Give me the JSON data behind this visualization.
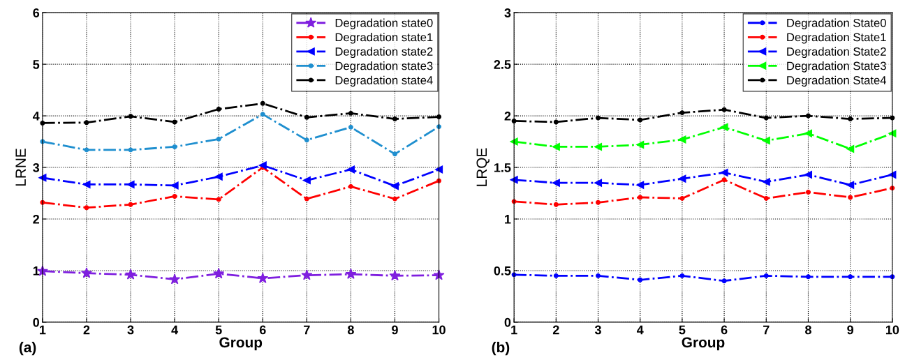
{
  "chart_data": [
    {
      "type": "line",
      "xlabel": "Group",
      "ylabel": "LRNE",
      "annotations": [
        "(a)"
      ],
      "x": [
        1,
        2,
        3,
        4,
        5,
        6,
        7,
        8,
        9,
        10
      ],
      "xlim": [
        1,
        10
      ],
      "xticks": [
        1,
        2,
        3,
        4,
        5,
        6,
        7,
        8,
        9,
        10
      ],
      "ylim": [
        0,
        6
      ],
      "yticks": [
        0,
        1,
        2,
        3,
        4,
        5,
        6
      ],
      "grid": true,
      "legend": "top right",
      "line_style": "dashed",
      "series": [
        {
          "name": "Degradation state0",
          "color": "#7f1fdf",
          "marker": "star",
          "values": [
            0.99,
            0.95,
            0.92,
            0.83,
            0.94,
            0.85,
            0.91,
            0.93,
            0.9,
            0.91
          ]
        },
        {
          "name": "Degradation state1",
          "color": "#ff0000",
          "marker": "circle",
          "values": [
            2.32,
            2.22,
            2.28,
            2.44,
            2.38,
            3.0,
            2.39,
            2.63,
            2.39,
            2.74
          ]
        },
        {
          "name": "Degradation state2",
          "color": "#0000ff",
          "marker": "triangle",
          "values": [
            2.8,
            2.67,
            2.67,
            2.65,
            2.82,
            3.04,
            2.75,
            2.96,
            2.64,
            2.96
          ]
        },
        {
          "name": "Degradation state3",
          "color": "#1f8fcf",
          "marker": "circle",
          "values": [
            3.5,
            3.34,
            3.34,
            3.4,
            3.55,
            4.03,
            3.53,
            3.78,
            3.26,
            3.79
          ]
        },
        {
          "name": "Degradation state4",
          "color": "#000000",
          "marker": "circle",
          "values": [
            3.86,
            3.87,
            3.99,
            3.88,
            4.13,
            4.24,
            3.97,
            4.05,
            3.94,
            3.98
          ]
        }
      ]
    },
    {
      "type": "line",
      "xlabel": "Group",
      "ylabel": "LRQE",
      "annotations": [
        "(b)"
      ],
      "x": [
        1,
        2,
        3,
        4,
        5,
        6,
        7,
        8,
        9,
        10
      ],
      "xlim": [
        1,
        10
      ],
      "xticks": [
        1,
        2,
        3,
        4,
        5,
        6,
        7,
        8,
        9,
        10
      ],
      "ylim": [
        0,
        3
      ],
      "yticks": [
        0,
        0.5,
        1,
        1.5,
        2,
        2.5,
        3
      ],
      "grid": true,
      "legend": "top right",
      "line_style": "dashed",
      "series": [
        {
          "name": "Degradation State0",
          "color": "#0000ff",
          "marker": "circle",
          "values": [
            0.46,
            0.45,
            0.45,
            0.41,
            0.45,
            0.4,
            0.45,
            0.44,
            0.44,
            0.44
          ]
        },
        {
          "name": "Degradation State1",
          "color": "#ff0000",
          "marker": "circle",
          "values": [
            1.17,
            1.14,
            1.16,
            1.21,
            1.2,
            1.38,
            1.2,
            1.26,
            1.21,
            1.3
          ]
        },
        {
          "name": "Degradation State2",
          "color": "#0000ff",
          "marker": "triangle",
          "values": [
            1.38,
            1.35,
            1.35,
            1.33,
            1.39,
            1.45,
            1.36,
            1.43,
            1.33,
            1.43
          ]
        },
        {
          "name": "Degradation State3",
          "color": "#00ff00",
          "marker": "triangle",
          "values": [
            1.75,
            1.7,
            1.7,
            1.72,
            1.77,
            1.89,
            1.76,
            1.83,
            1.68,
            1.83
          ]
        },
        {
          "name": "Degradation State4",
          "color": "#000000",
          "marker": "circle",
          "values": [
            1.95,
            1.94,
            1.98,
            1.96,
            2.03,
            2.06,
            1.98,
            2.0,
            1.97,
            1.98
          ]
        }
      ]
    }
  ]
}
